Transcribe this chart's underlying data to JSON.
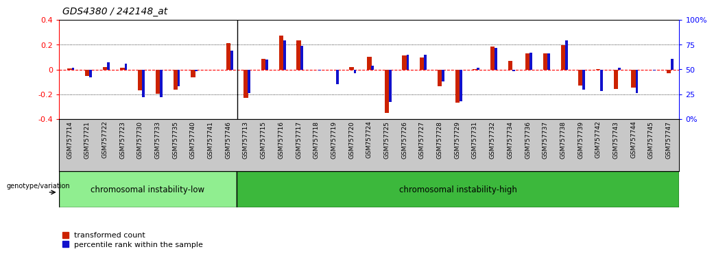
{
  "title": "GDS4380 / 242148_at",
  "categories": [
    "GSM757714",
    "GSM757721",
    "GSM757722",
    "GSM757723",
    "GSM757730",
    "GSM757733",
    "GSM757735",
    "GSM757740",
    "GSM757741",
    "GSM757746",
    "GSM757713",
    "GSM757715",
    "GSM757716",
    "GSM757717",
    "GSM757718",
    "GSM757719",
    "GSM757720",
    "GSM757724",
    "GSM757725",
    "GSM757726",
    "GSM757727",
    "GSM757728",
    "GSM757729",
    "GSM757731",
    "GSM757732",
    "GSM757734",
    "GSM757736",
    "GSM757737",
    "GSM757738",
    "GSM757739",
    "GSM757742",
    "GSM757743",
    "GSM757744",
    "GSM757745",
    "GSM757747"
  ],
  "red_values": [
    0.01,
    -0.055,
    0.02,
    0.015,
    -0.17,
    -0.195,
    -0.16,
    -0.065,
    -0.005,
    0.21,
    -0.23,
    0.085,
    0.275,
    0.235,
    0.0,
    -0.005,
    0.02,
    0.1,
    -0.35,
    0.115,
    0.095,
    -0.135,
    -0.27,
    0.005,
    0.185,
    0.07,
    0.13,
    0.13,
    0.195,
    -0.13,
    0.005,
    -0.155,
    -0.145,
    -0.005,
    -0.03
  ],
  "blue_pcts": [
    52,
    42,
    57,
    56,
    22,
    22,
    33,
    48,
    50,
    69,
    26,
    60,
    79,
    74,
    49,
    35,
    46,
    54,
    17,
    65,
    65,
    38,
    18,
    52,
    72,
    48,
    67,
    66,
    79,
    30,
    28,
    52,
    26,
    49,
    61
  ],
  "group1_count": 10,
  "group1_label": "chromosomal instability-low",
  "group2_label": "chromosomal instability-high",
  "group1_color": "#90EE90",
  "group2_color": "#3CB83C",
  "red_color": "#CC2200",
  "blue_color": "#1111CC",
  "ylim_left": [
    -0.4,
    0.4
  ],
  "ylim_right": [
    0,
    100
  ],
  "yticks_left": [
    -0.4,
    -0.2,
    0.0,
    0.2,
    0.4
  ],
  "ytick_labels_left": [
    "-0.4",
    "-0.2",
    "0",
    "0.2",
    "0.4"
  ],
  "yticks_right": [
    0,
    25,
    50,
    75,
    100
  ],
  "ytick_labels_right": [
    "0%",
    "25",
    "50",
    "75",
    "100%"
  ],
  "hline_dotted": [
    0.2,
    -0.2
  ],
  "genotype_label": "genotype/variation",
  "legend_red": "transformed count",
  "legend_blue": "percentile rank within the sample",
  "bar_width": 0.25,
  "blue_bar_width": 0.15,
  "xticklabel_bg": "#C8C8C8",
  "plot_bg": "#FFFFFF"
}
